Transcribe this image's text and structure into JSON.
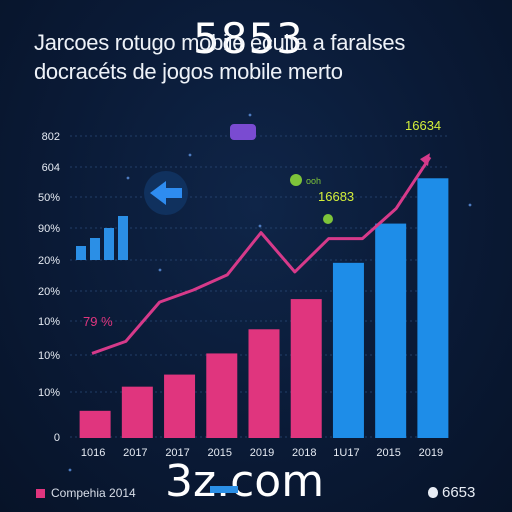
{
  "header": {
    "title_line1": "Jarcoes rotugo mobile ecuita a faralses",
    "title_line2": "docracéts de jogos mobile  merto",
    "overlay_number": "5853"
  },
  "watermark": "3z.com",
  "legend": {
    "label": "Compehia 2014",
    "colors": {
      "pink": "#e0357e",
      "blue": "#2b8fe6"
    }
  },
  "brand": {
    "text": "6653",
    "icon": "apple-icon"
  },
  "annotations": {
    "start_label": "79 %",
    "mid_label": "16683",
    "mid_small": "ooh",
    "peak_label": "16634"
  },
  "decorations": [
    "gamepad-icon",
    "back-arrow-icon",
    "mini-bar-icon"
  ],
  "chart_data": {
    "type": "bar",
    "categories": [
      "1016",
      "2017",
      "2017",
      "2015",
      "2019",
      "2018",
      "1U17",
      "2015",
      "2019"
    ],
    "y_ticks": [
      "0",
      "10%",
      "10%",
      "10%",
      "20%",
      "20%",
      "90%",
      "50%",
      "604",
      "802"
    ],
    "bar_values": [
      0.9,
      1.7,
      2.1,
      2.8,
      3.6,
      4.6,
      5.8,
      7.1,
      8.6
    ],
    "bar_colors": [
      "#e0357e",
      "#e0357e",
      "#e0357e",
      "#e0357e",
      "#e0357e",
      "#e0357e",
      "#1e8de8",
      "#1e8de8",
      "#1e8de8"
    ],
    "line_values": [
      2.8,
      3.2,
      4.5,
      4.9,
      5.4,
      6.8,
      5.5,
      6.6,
      6.6,
      7.6,
      9.3
    ],
    "line_color": "#d63a8a",
    "ylim": [
      0,
      10
    ]
  }
}
